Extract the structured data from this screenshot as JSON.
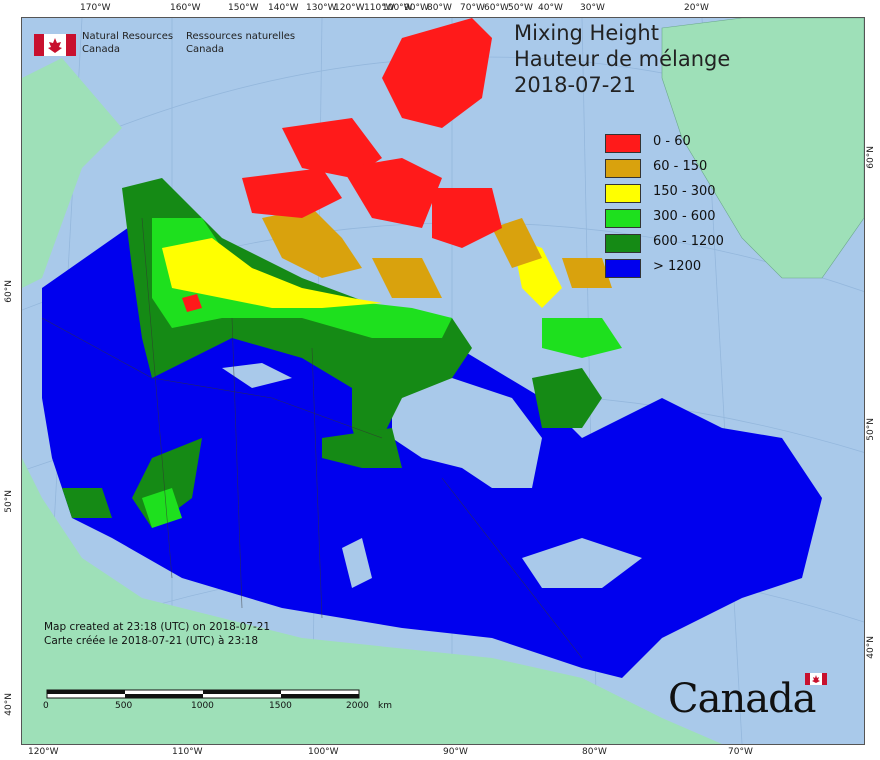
{
  "map": {
    "title_en": "Mixing Height",
    "title_fr": "Hauteur de mélange",
    "date": "2018-07-21",
    "legend": [
      {
        "label": "0 - 60",
        "color": "#ff1a1a"
      },
      {
        "label": "60 - 150",
        "color": "#d9a20d"
      },
      {
        "label": "150 - 300",
        "color": "#ffff00"
      },
      {
        "label": "300 - 600",
        "color": "#1ee01e"
      },
      {
        "label": "600 - 1200",
        "color": "#158a15"
      },
      {
        "label": "> 1200",
        "color": "#0000ee"
      }
    ],
    "colors": {
      "ocean": "#a9c9ea",
      "foreign_land": "#9ee0b8",
      "greenland": "#9ee0b8"
    },
    "agency_en_1": "Natural Resources",
    "agency_en_2": "Canada",
    "agency_fr_1": "Ressources naturelles",
    "agency_fr_2": "Canada",
    "credit_en": "Map created at 23:18 (UTC) on 2018-07-21",
    "credit_fr": "Carte créée le 2018-07-21 (UTC) à 23:18",
    "scale_labels": [
      "0",
      "500",
      "1000",
      "1500",
      "2000",
      "km"
    ],
    "wordmark": "Canada",
    "top_ticks": [
      "170°W",
      "160°W",
      "150°W",
      "140°W",
      "130°W",
      "120°W",
      "110°W",
      "100°W",
      "90°W",
      "80°W",
      "70°W",
      "60°W",
      "50°W",
      "40°W",
      "30°W",
      "20°W"
    ],
    "bottom_ticks": [
      "120°W",
      "110°W",
      "100°W",
      "90°W",
      "80°W",
      "70°W"
    ],
    "left_ticks": [
      "60°N",
      "50°N",
      "40°N"
    ],
    "right_ticks": [
      "60°N",
      "50°N",
      "40°N"
    ]
  }
}
